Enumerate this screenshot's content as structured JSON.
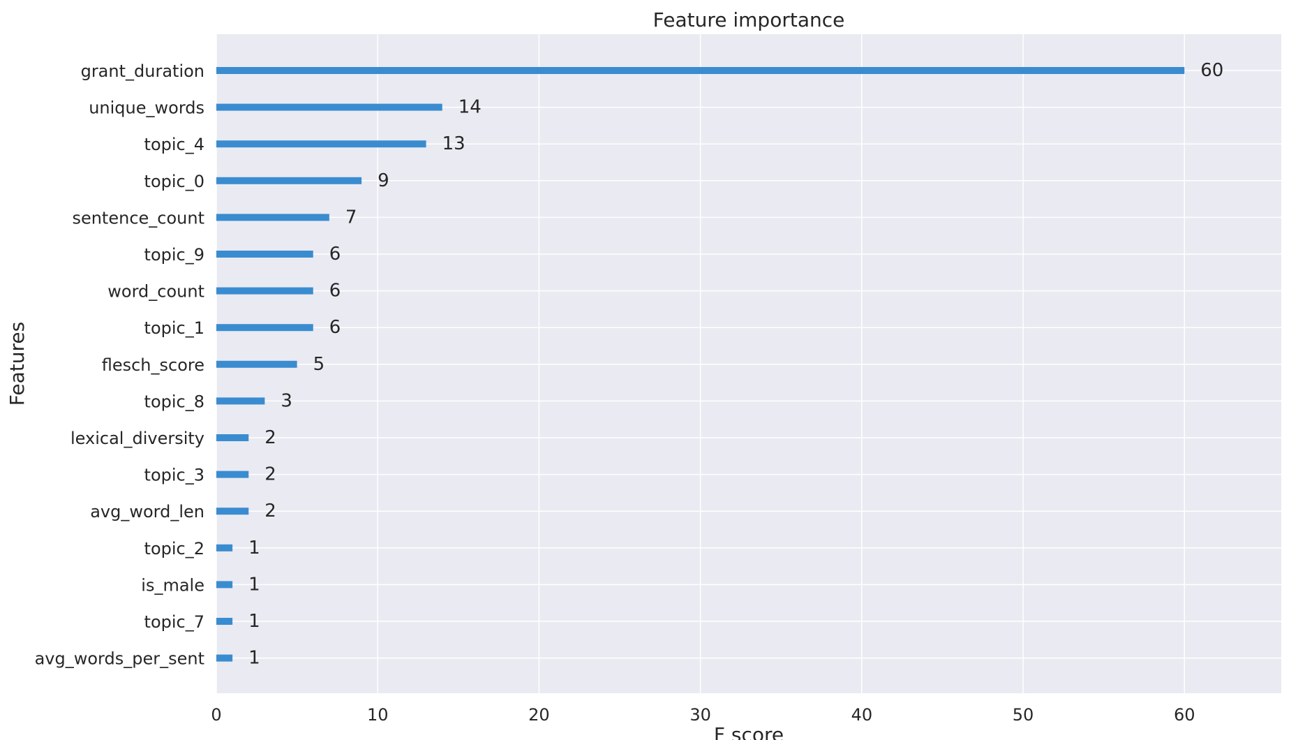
{
  "chart_data": {
    "type": "bar",
    "orientation": "horizontal",
    "title": "Feature importance",
    "xlabel": "F score",
    "ylabel": "Features",
    "xlim": [
      0,
      66
    ],
    "xticks": [
      0,
      10,
      20,
      30,
      40,
      50,
      60
    ],
    "grid": true,
    "categories": [
      "grant_duration",
      "unique_words",
      "topic_4",
      "topic_0",
      "sentence_count",
      "topic_9",
      "word_count",
      "topic_1",
      "flesch_score",
      "topic_8",
      "lexical_diversity",
      "topic_3",
      "avg_word_len",
      "topic_2",
      "is_male",
      "topic_7",
      "avg_words_per_sent"
    ],
    "values": [
      60,
      14,
      13,
      9,
      7,
      6,
      6,
      6,
      5,
      3,
      2,
      2,
      2,
      1,
      1,
      1,
      1
    ],
    "colors": {
      "bar": "#3a8cd0",
      "plot_bg": "#eaeaf2",
      "grid": "#ffffff",
      "text": "#262626"
    }
  }
}
